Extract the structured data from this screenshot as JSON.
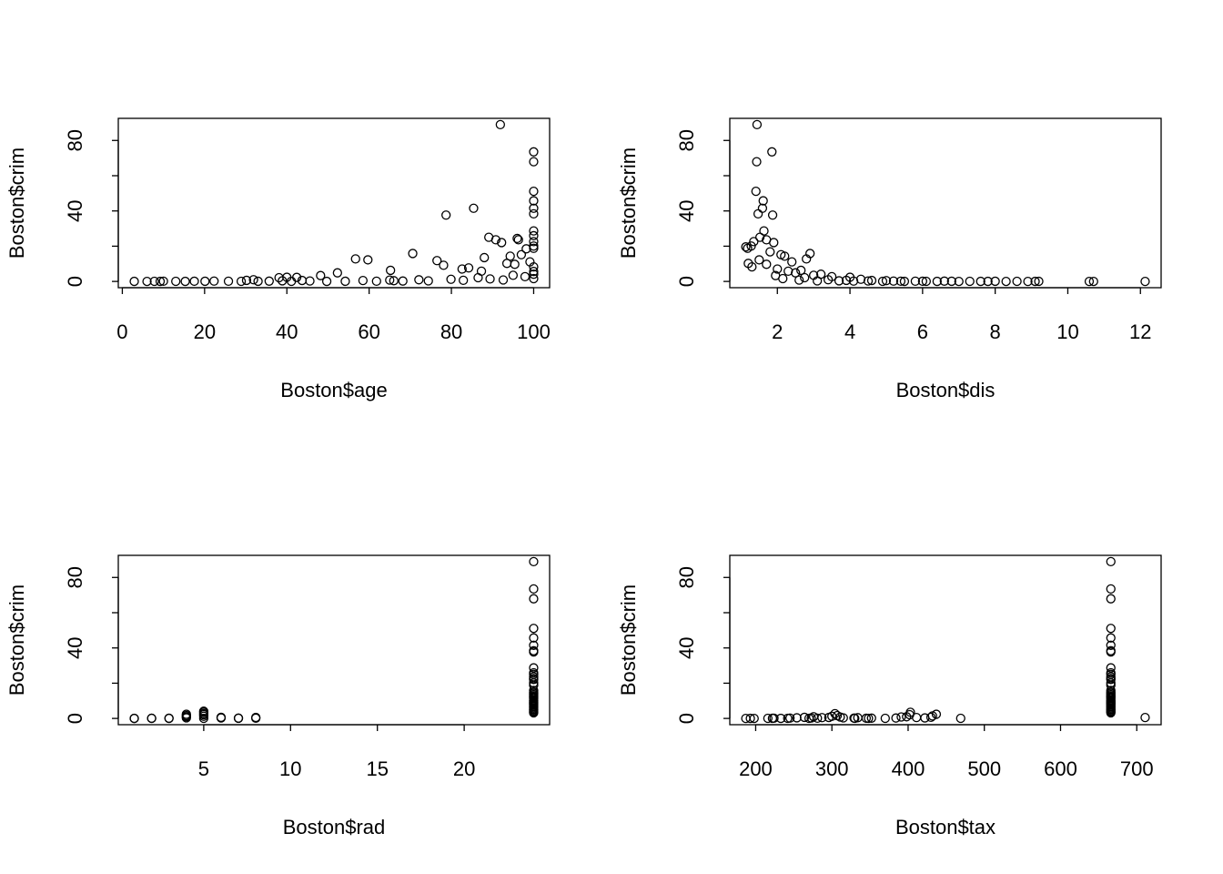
{
  "chart_data": [
    {
      "type": "scatter",
      "xlabel": "Boston$age",
      "ylabel": "Boston$crim",
      "color": "#000000",
      "xlim": [
        -0.98,
        103.88
      ],
      "ylim": [
        -3.55,
        92.54
      ],
      "xticks": [
        0,
        20,
        40,
        60,
        80,
        100
      ],
      "yticks": [
        0,
        40,
        80
      ],
      "yminorticks": [
        20,
        60
      ],
      "x": [
        91.9,
        100,
        100,
        100,
        100,
        100,
        100,
        100,
        100,
        100,
        100,
        100,
        85.4,
        78.7,
        89.1,
        90.8,
        92.2,
        96.0,
        96.3,
        70.6,
        56.7,
        59.7,
        76.5,
        78.1,
        94.3,
        97.0,
        98.2,
        88.0,
        93.5,
        82.6,
        84.2,
        65.2,
        52.3,
        48.2,
        38.1,
        40.0,
        42.4,
        95.4,
        99.1,
        87.3,
        2.9,
        6.0,
        7.8,
        9.2,
        10.0,
        13.0,
        15.3,
        17.5,
        20.1,
        22.3,
        25.8,
        28.9,
        30.2,
        33.0,
        35.7,
        38.9,
        41.1,
        43.7,
        45.6,
        49.7,
        54.2,
        58.5,
        61.8,
        65.0,
        68.2,
        72.1,
        74.4,
        79.9,
        82.9,
        86.5,
        89.4,
        92.6,
        95.0,
        97.9,
        100,
        100,
        100,
        100,
        66.0,
        31.9
      ],
      "values": [
        88.98,
        73.53,
        67.92,
        51.14,
        45.75,
        41.53,
        38.35,
        28.66,
        25.94,
        22.6,
        20.08,
        18.81,
        41.53,
        37.66,
        25.05,
        23.65,
        22.05,
        24.39,
        23.65,
        15.86,
        12.8,
        12.25,
        11.81,
        9.18,
        14.33,
        15.18,
        18.5,
        13.52,
        10.23,
        7.05,
        7.67,
        6.29,
        4.87,
        3.32,
        2.15,
        2.37,
        2.3,
        9.72,
        11.11,
        5.82,
        0.03,
        0.02,
        0.08,
        0.04,
        0.14,
        0.05,
        0.03,
        0.11,
        0.09,
        0.21,
        0.13,
        0.06,
        0.62,
        0.09,
        0.17,
        0.35,
        0.08,
        0.55,
        0.26,
        0.04,
        0.09,
        0.53,
        0.14,
        0.78,
        0.22,
        0.95,
        0.31,
        1.23,
        0.65,
        2.14,
        1.44,
        0.83,
        3.47,
        2.73,
        4.09,
        5.66,
        8.27,
        1.63,
        0.41,
        0.98
      ]
    },
    {
      "type": "scatter",
      "xlabel": "Boston$dis",
      "ylabel": "Boston$crim",
      "color": "#000000",
      "xlim": [
        0.69,
        12.57
      ],
      "ylim": [
        -3.55,
        92.54
      ],
      "xticks": [
        2,
        4,
        6,
        8,
        10,
        12
      ],
      "yticks": [
        0,
        40,
        80
      ],
      "yminorticks": [
        20,
        60
      ],
      "x": [
        1.44,
        1.85,
        1.43,
        1.41,
        1.61,
        1.59,
        1.47,
        1.87,
        1.63,
        1.18,
        1.28,
        1.35,
        1.52,
        1.7,
        1.9,
        2.1,
        2.2,
        2.9,
        2.8,
        1.2,
        1.3,
        1.5,
        1.7,
        2.0,
        2.3,
        2.5,
        3.0,
        3.5,
        4.0,
        1.13,
        1.8,
        2.4,
        2.65,
        3.2,
        1.95,
        2.15,
        2.75,
        3.4,
        4.3,
        4.6,
        4.9,
        5.2,
        5.5,
        5.8,
        6.1,
        6.4,
        6.8,
        7.0,
        7.3,
        7.6,
        7.8,
        8.0,
        8.3,
        8.6,
        8.9,
        9.1,
        9.2,
        10.59,
        10.71,
        12.13,
        3.7,
        3.9,
        4.1,
        4.5,
        5.0,
        5.4,
        2.6,
        3.1,
        6.0,
        6.6
      ],
      "values": [
        88.98,
        73.53,
        67.92,
        51.14,
        45.75,
        41.53,
        38.35,
        37.66,
        28.66,
        18.81,
        20.08,
        22.6,
        25.05,
        23.65,
        22.05,
        15.18,
        14.33,
        15.86,
        12.8,
        10.23,
        8.27,
        12.25,
        9.72,
        7.05,
        5.82,
        4.87,
        3.47,
        2.73,
        2.37,
        19.61,
        16.81,
        11.11,
        6.29,
        4.09,
        3.32,
        1.63,
        2.15,
        0.98,
        1.23,
        0.55,
        0.08,
        0.21,
        0.04,
        0.13,
        0.06,
        0.03,
        0.09,
        0.02,
        0.05,
        0.04,
        0.03,
        0.1,
        0.02,
        0.06,
        0.01,
        0.03,
        0.05,
        0.01,
        0.02,
        0.01,
        0.35,
        0.62,
        0.18,
        0.26,
        0.44,
        0.14,
        0.78,
        0.31,
        0.11,
        0.17
      ]
    },
    {
      "type": "scatter",
      "xlabel": "Boston$rad",
      "ylabel": "Boston$crim",
      "color": "#000000",
      "xlim": [
        0.08,
        24.92
      ],
      "ylim": [
        -3.55,
        92.54
      ],
      "xticks": [
        5,
        10,
        15,
        20
      ],
      "yticks": [
        0,
        40,
        80
      ],
      "yminorticks": [
        20,
        60
      ],
      "x": [
        1,
        1,
        2,
        2,
        3,
        3,
        4,
        4,
        4,
        4,
        5,
        5,
        5,
        5,
        5,
        5,
        6,
        6,
        7,
        7,
        8,
        8,
        24,
        24,
        24,
        24,
        24,
        24,
        24,
        24,
        24,
        24,
        24,
        24,
        24,
        24,
        24,
        24,
        24,
        24,
        24,
        24,
        24,
        24,
        24,
        24,
        24,
        24,
        24,
        24,
        24,
        24,
        24,
        24,
        24,
        24,
        24,
        24,
        24,
        24
      ],
      "values": [
        0.01,
        0.03,
        0.05,
        0.09,
        0.04,
        0.13,
        0.35,
        0.98,
        1.63,
        2.37,
        0.08,
        1.23,
        2.15,
        2.73,
        3.47,
        4.09,
        0.26,
        0.62,
        0.09,
        0.18,
        0.14,
        0.55,
        88.98,
        73.5,
        67.9,
        51.1,
        45.7,
        41.5,
        38.4,
        37.7,
        28.7,
        25.9,
        25.0,
        23.6,
        22.6,
        22.1,
        20.1,
        18.8,
        15.9,
        15.0,
        14.3,
        13.5,
        12.8,
        12.2,
        11.8,
        11.1,
        10.2,
        9.9,
        9.2,
        8.7,
        8.2,
        7.7,
        7.0,
        6.5,
        5.8,
        5.2,
        4.8,
        4.2,
        3.7,
        3.2
      ]
    },
    {
      "type": "scatter",
      "xlabel": "Boston$tax",
      "ylabel": "Boston$crim",
      "color": "#000000",
      "xlim": [
        166.04,
        731.96
      ],
      "ylim": [
        -3.55,
        92.54
      ],
      "xticks": [
        200,
        300,
        400,
        500,
        600,
        700
      ],
      "yticks": [
        0,
        40,
        80
      ],
      "yminorticks": [
        20,
        60
      ],
      "x": [
        187,
        193,
        198,
        216,
        222,
        224,
        233,
        242,
        245,
        254,
        264,
        270,
        273,
        276,
        281,
        287,
        296,
        300,
        304,
        307,
        311,
        315,
        329,
        330,
        334,
        345,
        348,
        352,
        370,
        384,
        391,
        398,
        402,
        403,
        411,
        422,
        430,
        432,
        437,
        469,
        711,
        666,
        666,
        666,
        666,
        666,
        666,
        666,
        666,
        666,
        666,
        666,
        666,
        666,
        666,
        666,
        666,
        666,
        666,
        666,
        666,
        666,
        666,
        666,
        666,
        666,
        666,
        666,
        666,
        666,
        666,
        666,
        666,
        666,
        666,
        666,
        666,
        666,
        666
      ],
      "values": [
        0.01,
        0.03,
        0.02,
        0.05,
        0.09,
        0.13,
        0.04,
        0.06,
        0.21,
        0.35,
        0.62,
        0.08,
        0.26,
        0.98,
        0.14,
        0.44,
        0.55,
        1.23,
        2.73,
        1.63,
        0.78,
        0.31,
        0.18,
        0.09,
        0.41,
        0.11,
        0.06,
        0.17,
        0.05,
        0.24,
        0.83,
        0.95,
        2.15,
        3.47,
        0.52,
        0.29,
        0.66,
        1.44,
        2.37,
        0.07,
        0.51,
        88.98,
        73.5,
        67.9,
        51.1,
        45.7,
        41.5,
        38.4,
        37.7,
        28.7,
        25.9,
        25.0,
        23.6,
        22.6,
        22.1,
        20.1,
        18.8,
        15.9,
        15.0,
        14.3,
        13.5,
        12.8,
        12.2,
        11.8,
        11.1,
        10.2,
        9.9,
        9.2,
        8.7,
        8.2,
        7.7,
        7.0,
        6.5,
        5.8,
        5.2,
        4.8,
        4.2,
        3.7,
        3.2
      ]
    }
  ]
}
